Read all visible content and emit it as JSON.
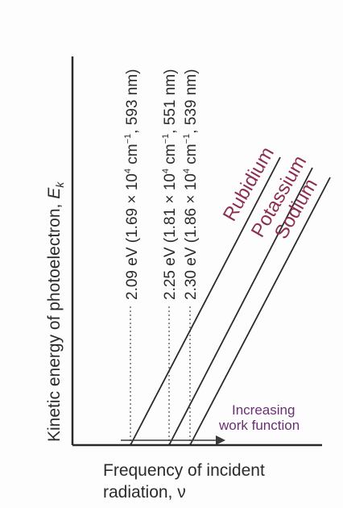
{
  "chart_data": {
    "type": "line",
    "xlabel_line1": "Frequency of incident",
    "xlabel_line2": "radiation, ν",
    "ylabel_main": "Kinetic energy of photoelectron, ",
    "ylabel_symbol": "E",
    "ylabel_sub": "k",
    "annotation_line1": "Increasing",
    "annotation_line2": "work function",
    "colors": {
      "line": "#2a2a2a",
      "metal_label": "#8c2f52",
      "annotation": "#6b2f74",
      "threshold": "#555555"
    },
    "series": [
      {
        "name": "Rubidium",
        "threshold_label": {
          "pre": "2.09 eV (1.69 × 10",
          "exp": "4",
          "mid": " cm",
          "exp2": "−1",
          "post": ", 593 nm)"
        }
      },
      {
        "name": "Potassium",
        "threshold_label": {
          "pre": "2.25 eV (1.81 × 10",
          "exp": "4",
          "mid": " cm",
          "exp2": "−1",
          "post": ", 551 nm)"
        }
      },
      {
        "name": "Sodium",
        "threshold_label": {
          "pre": "2.30 eV (1.86 × 10",
          "exp": "4",
          "mid": " cm",
          "exp2": "−1",
          "post": ", 539 nm)"
        }
      }
    ]
  }
}
